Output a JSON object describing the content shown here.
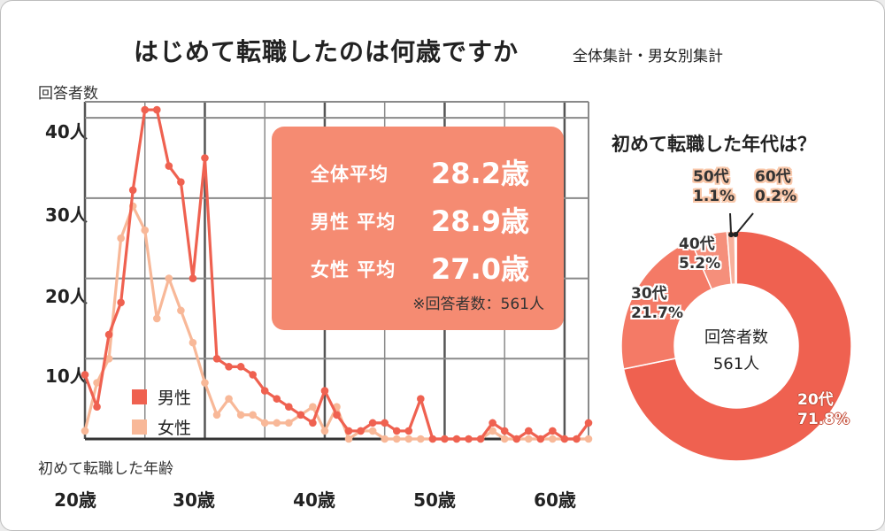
{
  "header": {
    "title": "はじめて転職したのは何歳ですか",
    "subtitle": "全体集計・男女別集計"
  },
  "colors": {
    "male": "#ef6150",
    "female": "#f8b898",
    "box": "#f58b72",
    "pie_20": "#ef6150",
    "pie_30": "#f47a66",
    "pie_40": "#f58f7b",
    "pie_50": "#f8b19c",
    "pie_60": "#e86f5c"
  },
  "chart_data": [
    {
      "type": "line",
      "title": "",
      "ylabel": "回答者数",
      "xlabel": "初めて転職した年齢",
      "ylim": [
        0,
        42
      ],
      "xlim": [
        20,
        62
      ],
      "yticks": [
        "10人",
        "20人",
        "30人",
        "40人"
      ],
      "yticks_values": [
        10,
        20,
        30,
        40
      ],
      "xticks": [
        "20歳",
        "30歳",
        "40歳",
        "50歳",
        "60歳"
      ],
      "xticks_values": [
        20,
        30,
        40,
        50,
        60
      ],
      "grid": true,
      "legend_position": "bottom-left",
      "x": [
        20,
        21,
        22,
        23,
        24,
        25,
        26,
        27,
        28,
        29,
        30,
        31,
        32,
        33,
        34,
        35,
        36,
        37,
        38,
        39,
        40,
        41,
        42,
        43,
        44,
        45,
        46,
        47,
        48,
        49,
        50,
        51,
        52,
        53,
        54,
        55,
        56,
        57,
        58,
        59,
        60,
        61,
        62
      ],
      "series": [
        {
          "name": "男性",
          "values": [
            8,
            4,
            13,
            17,
            31,
            41,
            41,
            34,
            32,
            20,
            35,
            10,
            9,
            9,
            8,
            6,
            5,
            4,
            3,
            2,
            6,
            3,
            1,
            1,
            2,
            2,
            1,
            1,
            5,
            0,
            0,
            0,
            0,
            0,
            2,
            1,
            0,
            1,
            0,
            1,
            0,
            0,
            2
          ]
        },
        {
          "name": "女性",
          "values": [
            1,
            7,
            10,
            25,
            29,
            26,
            15,
            20,
            16,
            12,
            7,
            3,
            5,
            3,
            3,
            2,
            2,
            2,
            3,
            4,
            1,
            4,
            0,
            1,
            1,
            0,
            0,
            0,
            0,
            0,
            0,
            0,
            0,
            0,
            1,
            0,
            0,
            0,
            0,
            0,
            0,
            0,
            0
          ]
        }
      ]
    },
    {
      "type": "pie",
      "title": "初めて転職した年代は？",
      "categories": [
        "20代",
        "30代",
        "40代",
        "50代",
        "60代"
      ],
      "values": [
        71.8,
        21.7,
        5.2,
        1.1,
        0.2
      ],
      "value_labels": [
        "71.8%",
        "21.7%",
        "5.2%",
        "1.1%",
        "0.2%"
      ],
      "center_label": "回答者数",
      "center_value": "561人"
    }
  ],
  "summary": {
    "rows": [
      {
        "label": "全体平均",
        "value": "28.2歳"
      },
      {
        "label": "男性 平均",
        "value": "28.9歳"
      },
      {
        "label": "女性 平均",
        "value": "27.0歳"
      }
    ],
    "note": "※回答者数：561人"
  }
}
